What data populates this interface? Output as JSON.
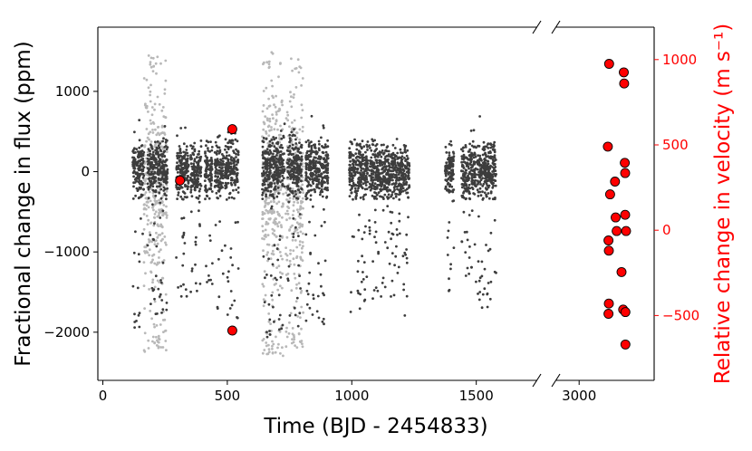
{
  "chart_data": {
    "type": "scatter",
    "title": "",
    "xlabel": "Time (BJD - 2454833)",
    "ylabel_left": "Fractional change in flux (ppm)",
    "ylabel_right": "Relative change in velocity (m s⁻¹)",
    "axis_break": "between 1750 and 2900 on the x axis",
    "xlim_segments": [
      [
        -20,
        1745
      ],
      [
        2930,
        3230
      ]
    ],
    "ylim_left": [
      -2600,
      1800
    ],
    "ylim_right": [
      -880,
      1190
    ],
    "x_ticks_left": [
      0,
      500,
      1000,
      1500
    ],
    "x_ticks_right": [
      3000
    ],
    "y_ticks_left": [
      1000,
      0,
      -1000,
      -2000
    ],
    "y_ticks_right": [
      1000,
      500,
      0,
      -500
    ],
    "grid": false,
    "legend": "none",
    "colors": {
      "flux_long_cadence": "#3d3d3d",
      "flux_short_cadence": "#b8b8b8",
      "rv_points": "#ff0000",
      "right_axis": "#ff0000",
      "axes": "#000000"
    },
    "series": [
      {
        "role": "flux (long cadence, dark gray dots)",
        "axis": "left",
        "segments": [
          {
            "x": [
              120,
              165
            ],
            "core_y": [
              -350,
              400
            ],
            "outliers_min_y": -2000,
            "outliers_max_y": 650
          },
          {
            "x": [
              180,
              260
            ],
            "core_y": [
              -350,
              400
            ],
            "outliers_min_y": -1800,
            "outliers_max_y": 650
          },
          {
            "x": [
              295,
              345
            ],
            "core_y": [
              -350,
              350
            ],
            "outliers_min_y": -1600,
            "outliers_max_y": 550
          },
          {
            "x": [
              352,
              395
            ],
            "core_y": [
              -350,
              350
            ],
            "outliers_min_y": -1500,
            "outliers_max_y": 400
          },
          {
            "x": [
              410,
              440
            ],
            "core_y": [
              -350,
              350
            ],
            "outliers_min_y": -1400,
            "outliers_max_y": 400
          },
          {
            "x": [
              450,
              485
            ],
            "core_y": [
              -350,
              350
            ],
            "outliers_min_y": -1900,
            "outliers_max_y": 450
          },
          {
            "x": [
              490,
              545
            ],
            "core_y": [
              -350,
              400
            ],
            "outliers_min_y": -1900,
            "outliers_max_y": 600
          },
          {
            "x": [
              640,
              730
            ],
            "core_y": [
              -350,
              450
            ],
            "outliers_min_y": -2100,
            "outliers_max_y": 700
          },
          {
            "x": [
              740,
              800
            ],
            "core_y": [
              -350,
              450
            ],
            "outliers_min_y": -2000,
            "outliers_max_y": 650
          },
          {
            "x": [
              815,
              905
            ],
            "core_y": [
              -350,
              400
            ],
            "outliers_min_y": -1900,
            "outliers_max_y": 700
          },
          {
            "x": [
              990,
              1065
            ],
            "core_y": [
              -350,
              350
            ],
            "outliers_min_y": -1800,
            "outliers_max_y": 450
          },
          {
            "x": [
              1070,
              1135
            ],
            "core_y": [
              -350,
              350
            ],
            "outliers_min_y": -1600,
            "outliers_max_y": 450
          },
          {
            "x": [
              1135,
              1200
            ],
            "core_y": [
              -350,
              350
            ],
            "outliers_min_y": -1600,
            "outliers_max_y": 450
          },
          {
            "x": [
              1200,
              1232
            ],
            "core_y": [
              -350,
              350
            ],
            "outliers_min_y": -1900,
            "outliers_max_y": 450
          },
          {
            "x": [
              1375,
              1410
            ],
            "core_y": [
              -350,
              350
            ],
            "outliers_min_y": -1500,
            "outliers_max_y": 400
          },
          {
            "x": [
              1440,
              1475
            ],
            "core_y": [
              -350,
              350
            ],
            "outliers_min_y": -1300,
            "outliers_max_y": 450
          },
          {
            "x": [
              1478,
              1500
            ],
            "core_y": [
              -350,
              350
            ],
            "outliers_min_y": -1400,
            "outliers_max_y": 550
          },
          {
            "x": [
              1505,
              1580
            ],
            "core_y": [
              -350,
              350
            ],
            "outliers_min_y": -1700,
            "outliers_max_y": 700
          }
        ]
      },
      {
        "role": "flux (short cadence, light gray dots)",
        "axis": "left",
        "segments": [
          {
            "x": [
              165,
              258
            ],
            "core_y": [
              -1850,
              1350
            ],
            "outliers_min_y": -2250,
            "outliers_max_y": 1450
          },
          {
            "x": [
              640,
              725
            ],
            "core_y": [
              -1900,
              1380
            ],
            "outliers_min_y": -2300,
            "outliers_max_y": 1500
          },
          {
            "x": [
              735,
              805
            ],
            "core_y": [
              -1850,
              1300
            ],
            "outliers_min_y": -2200,
            "outliers_max_y": 1450
          }
        ]
      },
      {
        "role": "radial velocity (red circles)",
        "axis": "left",
        "x": [
          310,
          520,
          520
        ],
        "y": [
          -110,
          530,
          -1980
        ]
      },
      {
        "role": "radial velocity (red circles)",
        "axis": "right",
        "x": [
          3092,
          3088,
          3095,
          3090,
          3091,
          3091,
          3090,
          3110,
          3112,
          3115,
          3130,
          3135,
          3137,
          3138,
          3140,
          3141,
          3141,
          3144,
          3142
        ],
        "y": [
          975,
          490,
          210,
          -60,
          -120,
          -430,
          -490,
          285,
          75,
          -5,
          -245,
          -465,
          925,
          860,
          395,
          335,
          90,
          -5,
          -480
        ]
      },
      {
        "role": "radial velocity (red circle)",
        "axis": "right",
        "x": [
          3142
        ],
        "y": [
          -670
        ]
      }
    ]
  }
}
